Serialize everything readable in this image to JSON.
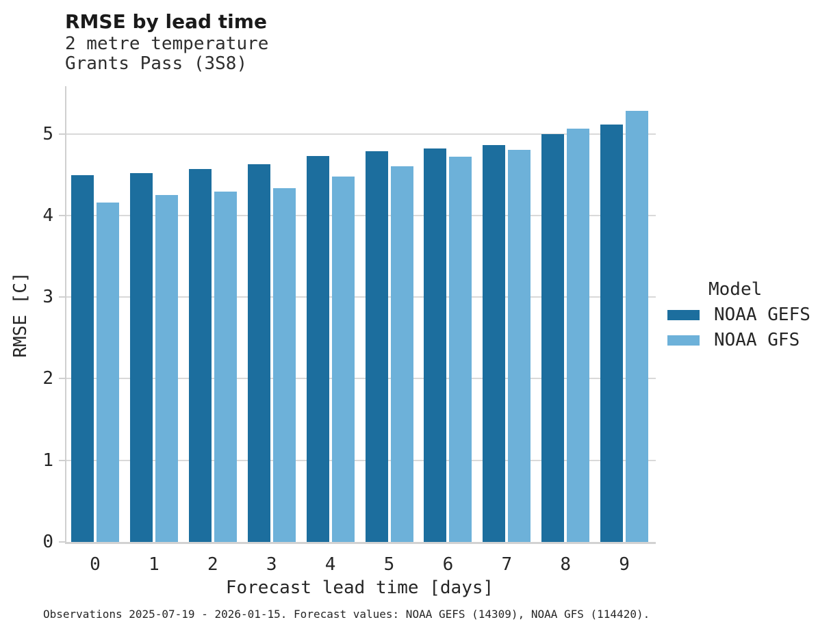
{
  "figure": {
    "title": "RMSE by lead time",
    "subtitle_lines": [
      "2 metre temperature",
      "Grants Pass (3S8)"
    ],
    "caption": "Observations 2025-07-19 - 2026-01-15. Forecast values: NOAA GEFS (14309), NOAA GFS (114420)."
  },
  "axes": {
    "xlabel": "Forecast lead time [days]",
    "ylabel": "RMSE [C]"
  },
  "legend": {
    "title": "Model",
    "items": [
      {
        "label": "NOAA GEFS",
        "color": "#1c6e9e"
      },
      {
        "label": "NOAA GFS",
        "color": "#6db1d9"
      }
    ]
  },
  "colors": {
    "background": "#ffffff",
    "grid": "#d9d9d9",
    "spine": "#cfcfcf",
    "tick_text": "#262626",
    "title_text": "#1a1a1a",
    "gefs_bar": "#1c6e9e",
    "gfs_bar": "#6db1d9"
  },
  "chart_data": {
    "type": "bar",
    "title": "RMSE by lead time",
    "subtitle": "2 metre temperature / Grants Pass (3S8)",
    "categories": [
      "0",
      "1",
      "2",
      "3",
      "4",
      "5",
      "6",
      "7",
      "8",
      "9"
    ],
    "series": [
      {
        "name": "NOAA GEFS",
        "color": "#1c6e9e",
        "values": [
          4.49,
          4.52,
          4.57,
          4.63,
          4.73,
          4.79,
          4.82,
          4.86,
          5.0,
          5.11
        ]
      },
      {
        "name": "NOAA GFS",
        "color": "#6db1d9",
        "values": [
          4.16,
          4.25,
          4.29,
          4.33,
          4.48,
          4.6,
          4.72,
          4.8,
          5.06,
          5.28
        ]
      }
    ],
    "xlabel": "Forecast lead time [days]",
    "ylabel": "RMSE [C]",
    "ylim": [
      0,
      5.58
    ],
    "yticks": [
      0,
      1,
      2,
      3,
      4,
      5
    ],
    "grid": "horizontal gridlines at integer y values, drawn behind bars",
    "legend_position": "right-center outside plot",
    "legend_title": "Model",
    "caption": "Observations 2025-07-19 - 2026-01-15. Forecast values: NOAA GEFS (14309), NOAA GFS (114420)."
  }
}
